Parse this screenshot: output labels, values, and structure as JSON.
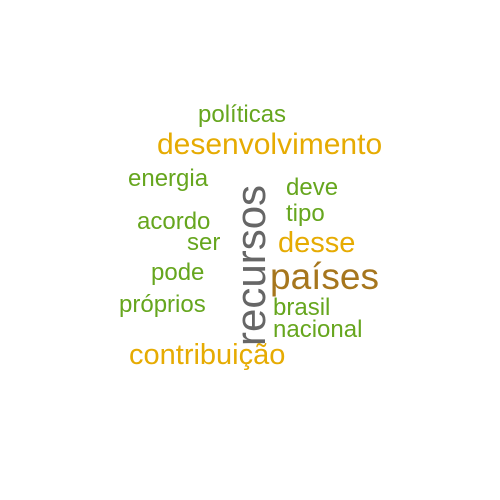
{
  "colors": {
    "green": "#66a61e",
    "gold": "#e6ab02",
    "gray": "#666666",
    "brown": "#a6761d"
  },
  "words": {
    "politicas": "políticas",
    "desenvolvimento": "desenvolvimento",
    "energia": "energia",
    "deve": "deve",
    "tipo": "tipo",
    "acordo": "acordo",
    "ser": "ser",
    "desse": "desse",
    "pode": "pode",
    "paises": "países",
    "proprios": "próprios",
    "brasil": "brasil",
    "nacional": "nacional",
    "contribuicao": "contribuição",
    "recursos": "recursos"
  },
  "word_colors": {
    "politicas": "green",
    "desenvolvimento": "gold",
    "energia": "green",
    "deve": "green",
    "tipo": "green",
    "acordo": "green",
    "ser": "green",
    "desse": "gold",
    "pode": "green",
    "paises": "brown",
    "proprios": "green",
    "brasil": "green",
    "nacional": "green",
    "contribuicao": "gold",
    "recursos": "gray"
  }
}
